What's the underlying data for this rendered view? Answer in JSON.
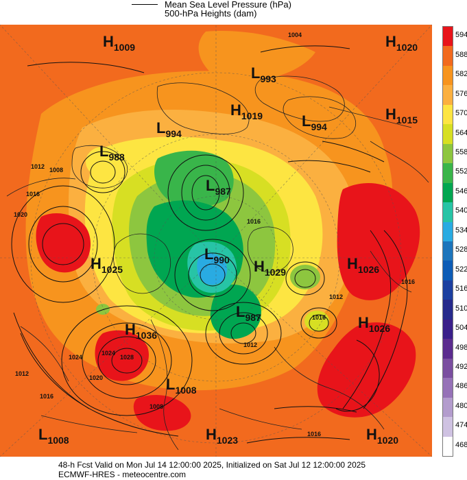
{
  "legend": {
    "mslp_label": "Mean Sea Level Pressure (hPa)",
    "heights_label": "500-hPa Heights (dam)"
  },
  "footer": {
    "line1": "48-h Fcst Valid on Mon Jul 14 12:00:00 2025, Initialized on Sat Jul 12 12:00:00 2025",
    "line2": "ECMWF-HRES - meteocentre.com"
  },
  "pressure_systems": [
    {
      "letter": "H",
      "value": "1009"
    },
    {
      "letter": "H",
      "value": "1020"
    },
    {
      "letter": "L",
      "value": "993"
    },
    {
      "letter": "H",
      "value": "1019"
    },
    {
      "letter": "L",
      "value": "994"
    },
    {
      "letter": "L",
      "value": "994"
    },
    {
      "letter": "H",
      "value": "1015"
    },
    {
      "letter": "L",
      "value": "988"
    },
    {
      "letter": "L",
      "value": "987"
    },
    {
      "letter": "H",
      "value": "1025"
    },
    {
      "letter": "L",
      "value": "990"
    },
    {
      "letter": "H",
      "value": "1029"
    },
    {
      "letter": "H",
      "value": "1026"
    },
    {
      "letter": "L",
      "value": "987"
    },
    {
      "letter": "H",
      "value": "1036"
    },
    {
      "letter": "H",
      "value": "1026"
    },
    {
      "letter": "L",
      "value": "1008"
    },
    {
      "letter": "L",
      "value": "1008"
    },
    {
      "letter": "H",
      "value": "1023"
    },
    {
      "letter": "H",
      "value": "1020"
    }
  ],
  "contour_labels": [
    "1004",
    "1012",
    "1008",
    "1016",
    "1020",
    "1024",
    "1028",
    "1012",
    "1016",
    "1020",
    "1024",
    "1016",
    "1012",
    "1016",
    "1012",
    "1008",
    "1016",
    "1016"
  ],
  "colorbar": {
    "labels": [
      "594",
      "588",
      "582",
      "576",
      "570",
      "564",
      "558",
      "552",
      "546",
      "540",
      "534",
      "528",
      "522",
      "516",
      "510",
      "504",
      "498",
      "492",
      "486",
      "480",
      "474",
      "468"
    ],
    "colors": [
      "#e8141a",
      "#f26a1e",
      "#f7941e",
      "#fbb040",
      "#fde542",
      "#d7df23",
      "#8dc63f",
      "#39b54a",
      "#00a651",
      "#27c4a6",
      "#29abe2",
      "#1c75bc",
      "#0d5cb6",
      "#1b3fa0",
      "#262a8c",
      "#3a1f8a",
      "#5b2c8f",
      "#7a4ea0",
      "#9672b8",
      "#b39ccd",
      "#cfc2e2",
      "#ffffff"
    ]
  },
  "colors": {
    "warm_red": "#e8141a",
    "orange": "#f26a1e",
    "light_orange": "#f7941e",
    "yellow": "#fde542",
    "green": "#39b54a",
    "blue": "#29abe2"
  }
}
